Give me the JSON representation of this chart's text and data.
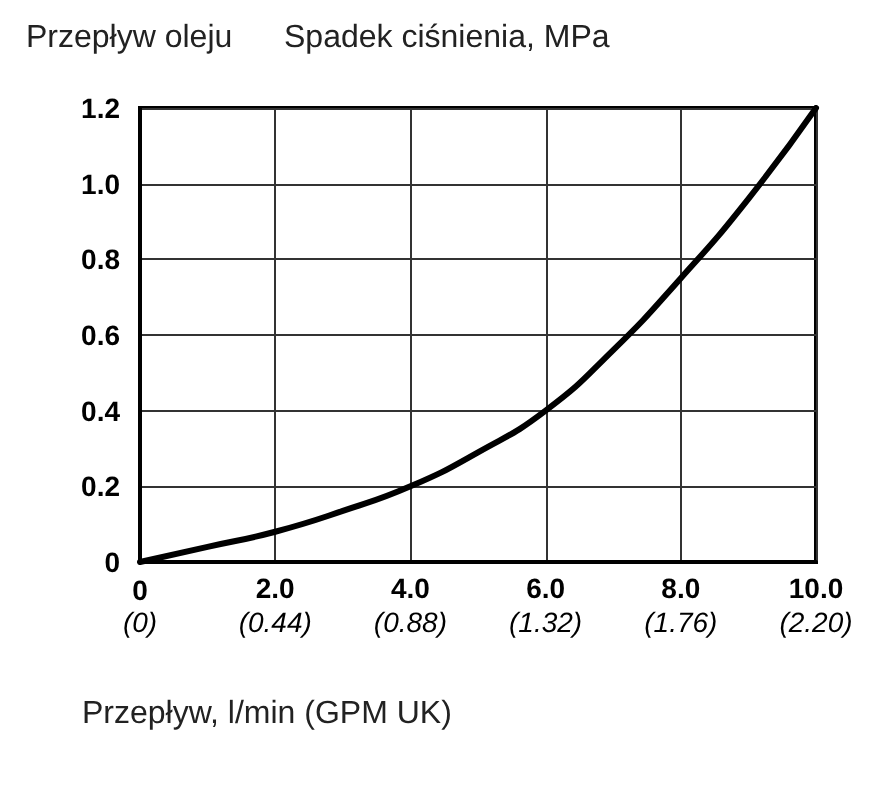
{
  "chart_data": {
    "type": "line",
    "title": "Przepływ oleju",
    "ylabel": "Spadek ciśnienia, MPa",
    "xlabel": "Przepływ, l/min (GPM UK)",
    "x": [
      0,
      1,
      2,
      3,
      4,
      5,
      6,
      7,
      8,
      9,
      10
    ],
    "series": [
      {
        "color": "#000000",
        "values": [
          0,
          0.04,
          0.08,
          0.135,
          0.2,
          0.29,
          0.4,
          0.56,
          0.75,
          0.96,
          1.2
        ]
      }
    ],
    "xlim": [
      0,
      10
    ],
    "xticks": [
      0,
      {
        "value": 2,
        "label": "2.0"
      },
      {
        "value": 4,
        "label": "4.0"
      },
      {
        "value": 6,
        "label": "6.0"
      },
      {
        "value": 8,
        "label": "8.0"
      },
      {
        "value": 10,
        "label": "10.0"
      }
    ],
    "x2lim": [
      0,
      2.2
    ],
    "x2ticks": [
      {
        "value": 0,
        "label": "(0)"
      },
      {
        "value": 0.44,
        "label": "(0.44)"
      },
      {
        "value": 0.88,
        "label": "(0.88)"
      },
      {
        "value": 1.32,
        "label": "(1.32)"
      },
      {
        "value": 1.76,
        "label": "(1.76)"
      },
      {
        "value": 2.2,
        "label": "(2.20)"
      }
    ],
    "ylim": [
      0,
      1.2
    ],
    "yticks": [
      0,
      0.2,
      0.4,
      0.6,
      0.8,
      {
        "value": 1,
        "label": "1.0"
      },
      1.2
    ],
    "grid": true,
    "marker": "none",
    "line_style": "solid"
  }
}
